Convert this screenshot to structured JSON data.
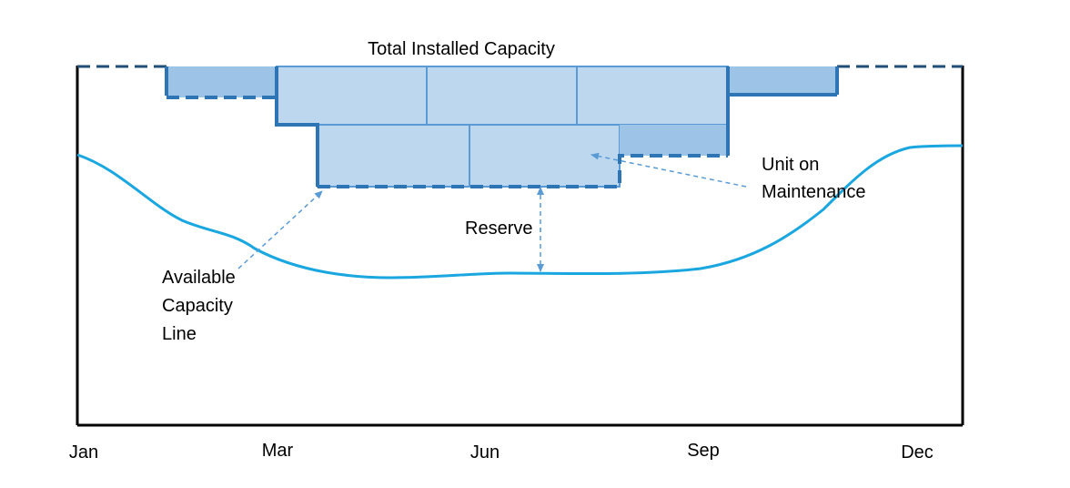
{
  "title": "Total Installed Capacity",
  "x_labels": [
    "Jan",
    "Mar",
    "Jun",
    "Sep",
    "Dec"
  ],
  "annotations": {
    "maintenance_lines": [
      "Unit on",
      "Maintenance"
    ],
    "reserve": "Reserve",
    "available_lines": [
      "Available",
      "Capacity",
      "Line"
    ]
  },
  "colors": {
    "frame": "#000000",
    "curve": "#1aa7e0",
    "block_fill_dark": "#9dc3e6",
    "block_fill_light": "#bdd7ee",
    "block_stroke": "#2e75b6",
    "block_grid": "#5b9bd5",
    "arrow": "#5b9bd5"
  }
}
